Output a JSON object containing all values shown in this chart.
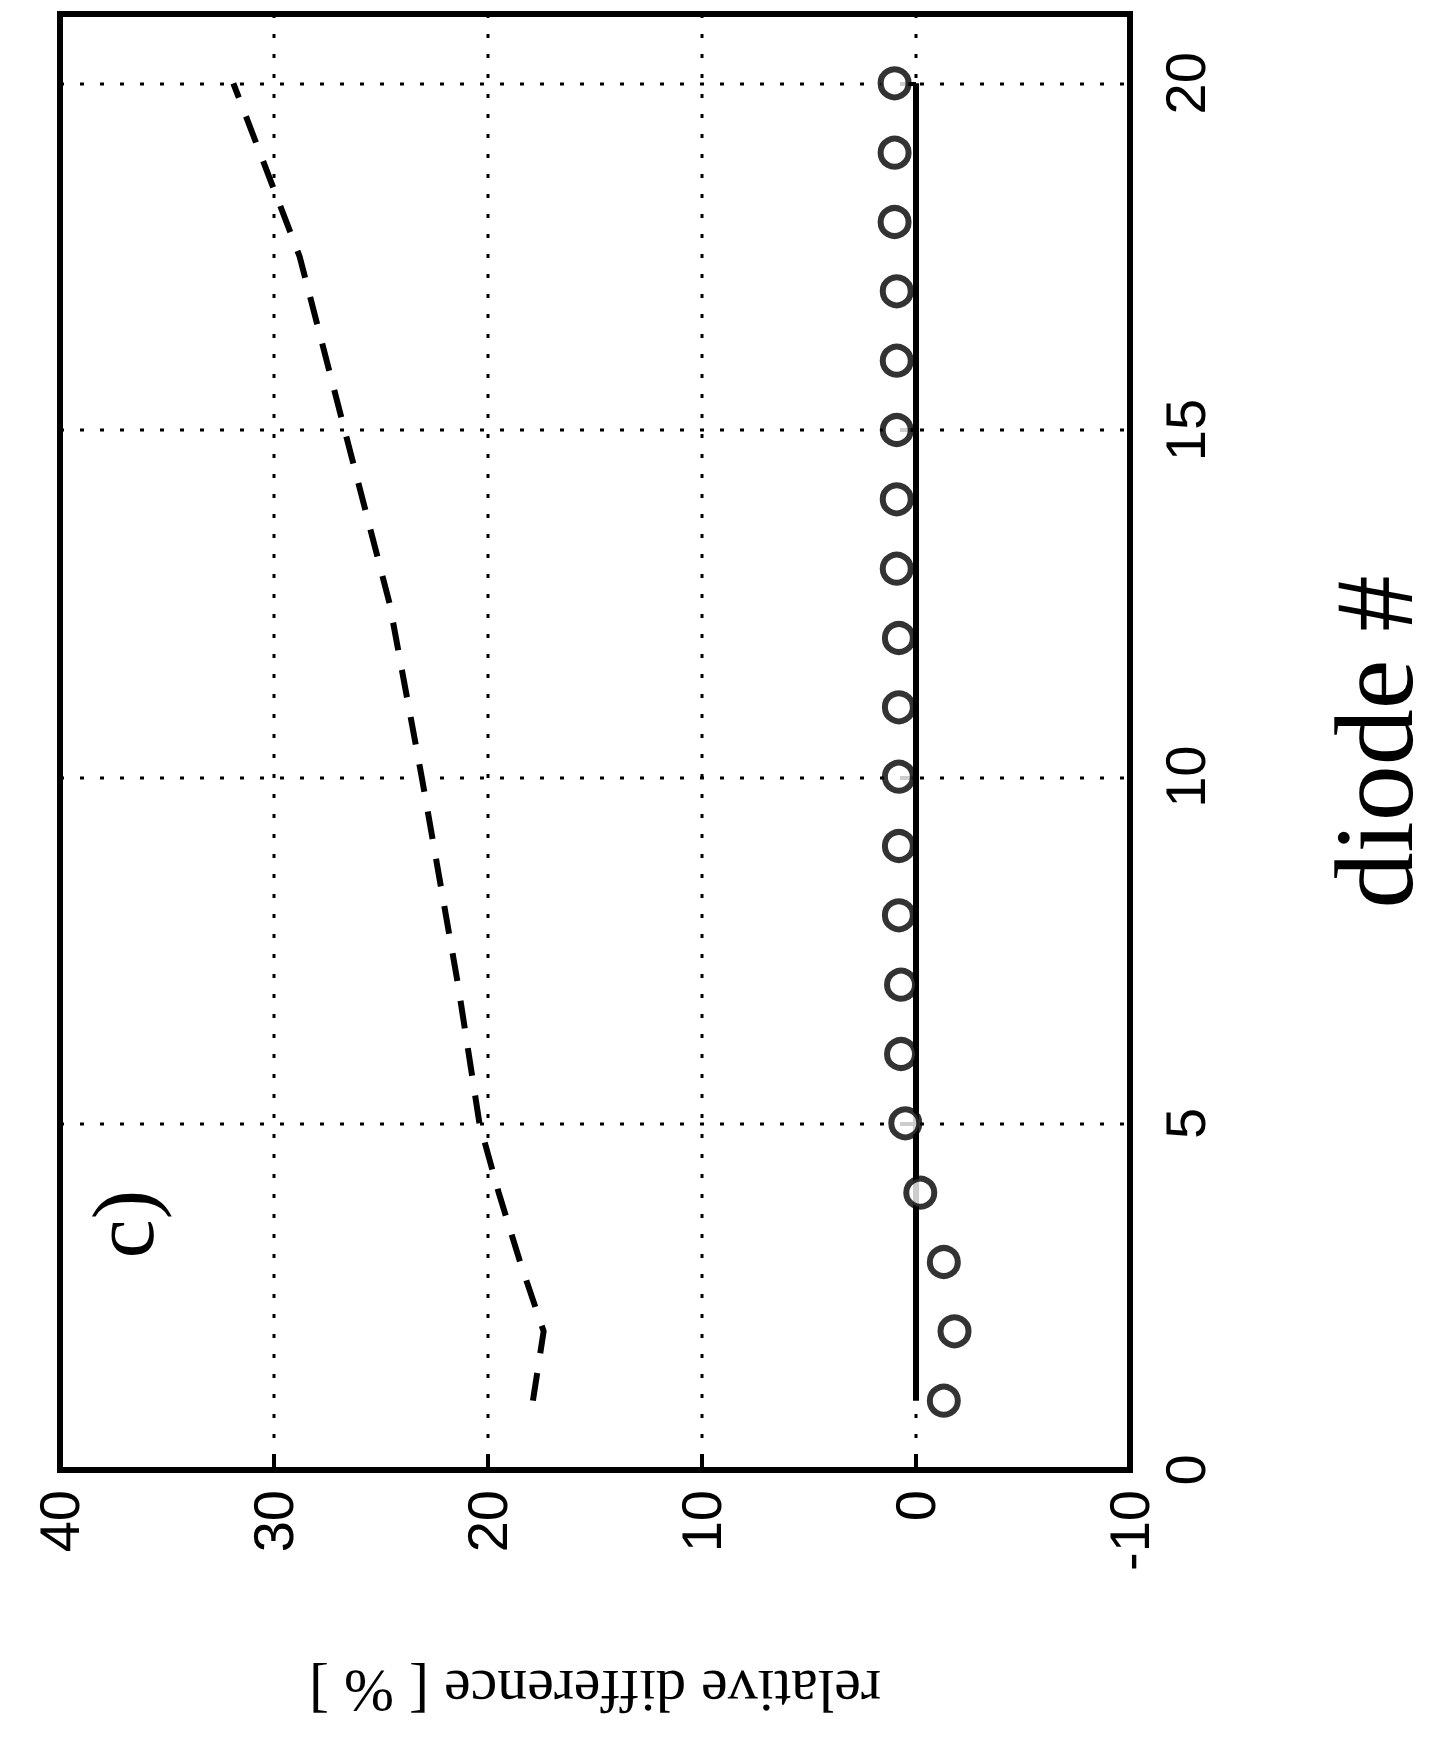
{
  "chart_data": {
    "type": "line",
    "xlabel": "relative difference [ % ]",
    "ylabel": "diode #",
    "annotations": [
      "c)"
    ],
    "xlim": [
      40,
      -10
    ],
    "xticks": [
      40,
      30,
      20,
      10,
      0,
      -10
    ],
    "ylim": [
      0,
      21
    ],
    "yticks": [
      0,
      5,
      10,
      15,
      20
    ],
    "grid": true,
    "series": [
      {
        "color": "#000000",
        "line_style": "dashed",
        "marker": "none",
        "x": [
          17.9,
          17.4,
          18.5,
          19.5,
          20.4,
          21.4,
          23.1,
          24.6,
          26.7,
          28.8,
          31.9
        ],
        "values": [
          1,
          2,
          3,
          4,
          5,
          7,
          10,
          12.5,
          15,
          17.5,
          20
        ]
      },
      {
        "color": "#000000",
        "line_style": "solid",
        "marker": "none",
        "x": [
          0,
          0
        ],
        "values": [
          1,
          20
        ]
      },
      {
        "type": "scatter",
        "color": "#000000",
        "marker": "circle",
        "x": [
          -1.3,
          -1.8,
          -1.3,
          -0.2,
          0.5,
          0.7,
          0.7,
          0.8,
          0.8,
          0.8,
          0.8,
          0.8,
          0.9,
          0.9,
          0.9,
          0.9,
          0.9,
          1.0,
          1.0,
          1.0
        ],
        "values": [
          1,
          2,
          3,
          4,
          5,
          6,
          7,
          8,
          9,
          10,
          11,
          12,
          13,
          14,
          15,
          16,
          17,
          18,
          19,
          20
        ]
      }
    ]
  }
}
